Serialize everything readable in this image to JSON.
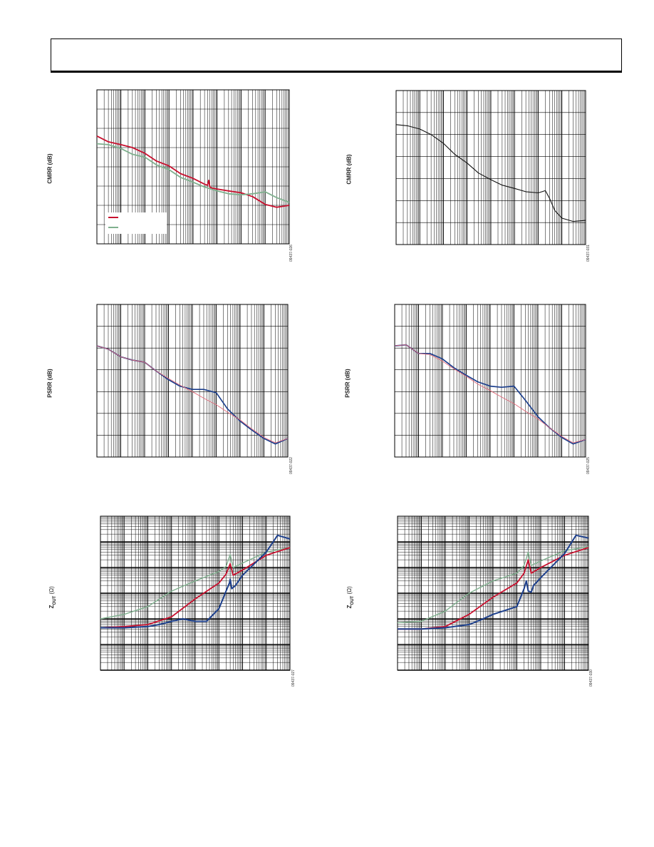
{
  "header": {
    "text": ""
  },
  "colors": {
    "red": "#c8102e",
    "green": "#7fb08e",
    "blue": "#1c3f8c",
    "pink": "#e46a7a",
    "black": "#111111"
  },
  "chart_data": [
    {
      "id": "cmrr-left",
      "type": "line",
      "ylabel": "CMRR (dB)",
      "fig_code": "09437-026",
      "xscale": "log",
      "xlim": [
        1,
        100000000
      ],
      "ylim": [
        0,
        8
      ],
      "grid": true,
      "legend": "bottom-left",
      "series": [
        {
          "color": "#c8102e",
          "width": 1.8,
          "x": [
            1,
            3,
            10,
            30,
            100,
            300,
            1000,
            3000,
            10000,
            30000,
            40000,
            45000,
            50000,
            60000,
            100000,
            300000,
            1000000,
            3000000,
            10000000,
            30000000,
            100000000
          ],
          "y": [
            5.6,
            5.3,
            5.15,
            5.0,
            4.7,
            4.3,
            4.05,
            3.65,
            3.4,
            3.1,
            3.05,
            3.3,
            2.95,
            2.9,
            2.85,
            2.75,
            2.65,
            2.45,
            2.05,
            1.9,
            2.0
          ]
        },
        {
          "color": "#7fb08e",
          "width": 1.8,
          "x": [
            1,
            3,
            10,
            30,
            100,
            300,
            1000,
            3000,
            10000,
            30000,
            100000,
            300000,
            1000000,
            3000000,
            10000000,
            30000000,
            100000000
          ],
          "y": [
            5.2,
            5.15,
            4.95,
            4.65,
            4.5,
            4.1,
            3.85,
            3.45,
            3.2,
            2.95,
            2.75,
            2.6,
            2.55,
            2.6,
            2.7,
            2.4,
            2.15
          ]
        }
      ]
    },
    {
      "id": "cmrr-right",
      "type": "line",
      "ylabel": "CMRR (dB)",
      "fig_code": "09437-031",
      "xscale": "log",
      "xlim": [
        1,
        100000000
      ],
      "ylim": [
        0,
        7
      ],
      "grid": true,
      "series": [
        {
          "color": "#111111",
          "width": 1.1,
          "x": [
            1,
            3,
            10,
            30,
            100,
            300,
            1000,
            3000,
            10000,
            30000,
            100000,
            300000,
            1000000,
            2000000,
            3000000,
            5000000,
            10000000,
            30000000,
            100000000
          ],
          "y": [
            5.45,
            5.4,
            5.25,
            5.0,
            4.6,
            4.1,
            3.7,
            3.25,
            2.95,
            2.7,
            2.55,
            2.4,
            2.35,
            2.45,
            2.1,
            1.55,
            1.2,
            1.05,
            1.1
          ]
        }
      ]
    },
    {
      "id": "psrr-left",
      "type": "line",
      "ylabel": "PSRR (dB)",
      "fig_code": "09437-022",
      "xscale": "log",
      "xlim": [
        1,
        100000000
      ],
      "ylim": [
        0,
        7
      ],
      "grid": true,
      "series": [
        {
          "color": "#1c3f8c",
          "width": 1.7,
          "x": [
            1,
            3,
            10,
            30,
            100,
            300,
            1000,
            3000,
            10000,
            30000,
            100000,
            300000,
            1000000,
            3000000,
            10000000,
            30000000,
            100000000
          ],
          "y": [
            5.1,
            4.95,
            4.6,
            4.45,
            4.35,
            3.95,
            3.55,
            3.25,
            3.1,
            3.1,
            2.95,
            2.2,
            1.65,
            1.25,
            0.85,
            0.6,
            0.85
          ]
        },
        {
          "color": "#e46a7a",
          "width": 0.9,
          "x": [
            1,
            3,
            10,
            30,
            100,
            300,
            1000,
            3000,
            10000,
            30000,
            100000,
            300000,
            1000000,
            3000000,
            10000000,
            30000000,
            100000000
          ],
          "y": [
            5.1,
            4.95,
            4.6,
            4.45,
            4.35,
            3.95,
            3.6,
            3.3,
            3.0,
            2.7,
            2.4,
            2.05,
            1.7,
            1.3,
            0.9,
            0.65,
            0.85
          ]
        }
      ]
    },
    {
      "id": "psrr-right",
      "type": "line",
      "ylabel": "PSRR (dB)",
      "fig_code": "09437-025",
      "xscale": "log",
      "xlim": [
        1,
        100000000
      ],
      "ylim": [
        0,
        7
      ],
      "grid": true,
      "series": [
        {
          "color": "#1c3f8c",
          "width": 1.7,
          "x": [
            1,
            3,
            10,
            30,
            100,
            300,
            1000,
            3000,
            10000,
            30000,
            100000,
            300000,
            1000000,
            3000000,
            10000000,
            30000000,
            100000000
          ],
          "y": [
            5.1,
            5.15,
            4.75,
            4.75,
            4.5,
            4.1,
            3.75,
            3.45,
            3.25,
            3.2,
            3.25,
            2.6,
            1.85,
            1.35,
            0.9,
            0.6,
            0.8
          ]
        },
        {
          "color": "#e46a7a",
          "width": 0.9,
          "x": [
            1,
            3,
            10,
            30,
            100,
            300,
            1000,
            3000,
            10000,
            30000,
            100000,
            300000,
            1000000,
            3000000,
            10000000,
            30000000,
            100000000
          ],
          "y": [
            5.1,
            5.15,
            4.75,
            4.7,
            4.4,
            4.05,
            3.7,
            3.35,
            3.05,
            2.75,
            2.45,
            2.1,
            1.75,
            1.35,
            0.95,
            0.65,
            0.8
          ]
        }
      ]
    },
    {
      "id": "zout-left",
      "type": "line",
      "ylabel": "Z",
      "ylabel_sub": "OUT",
      "ylabel_unit": " (Ω)",
      "fig_code": "09437-027",
      "xscale": "log",
      "xlim": [
        1,
        100000000
      ],
      "yscale": "log",
      "ylim": [
        0.001,
        1000
      ],
      "grid": true,
      "series": [
        {
          "color": "#7fb08e",
          "width": 1.4,
          "x": [
            1,
            10,
            100,
            1000,
            10000,
            100000,
            200000,
            300000,
            400000,
            1000000,
            10000000,
            100000000
          ],
          "y": [
            0.1,
            0.15,
            0.3,
            1.2,
            3,
            7,
            11,
            32,
            10,
            15,
            40,
            60
          ]
        },
        {
          "color": "#c8102e",
          "width": 1.8,
          "x": [
            1,
            10,
            100,
            1000,
            10000,
            100000,
            200000,
            300000,
            400000,
            1000000,
            10000000,
            100000000
          ],
          "y": [
            0.045,
            0.05,
            0.06,
            0.12,
            0.6,
            2.5,
            5.5,
            14,
            5,
            8,
            30,
            60
          ]
        },
        {
          "color": "#1c3f8c",
          "width": 2.0,
          "x": [
            1,
            10,
            100,
            300,
            1000,
            3000,
            10000,
            30000,
            100000,
            200000,
            280000,
            300000,
            350000,
            500000,
            1000000,
            10000000,
            30000000,
            100000000
          ],
          "y": [
            0.045,
            0.045,
            0.05,
            0.06,
            0.08,
            0.1,
            0.08,
            0.08,
            0.25,
            1.2,
            2.5,
            3.5,
            1.5,
            2,
            5,
            40,
            180,
            130
          ]
        }
      ]
    },
    {
      "id": "zout-right",
      "type": "line",
      "ylabel": "Z",
      "ylabel_sub": "OUT",
      "ylabel_unit": " (Ω)",
      "fig_code": "09437-030",
      "xscale": "log",
      "xlim": [
        1,
        100000000
      ],
      "yscale": "log",
      "ylim": [
        0.001,
        1000
      ],
      "grid": true,
      "series": [
        {
          "color": "#7fb08e",
          "width": 1.4,
          "x": [
            1,
            10,
            100,
            1000,
            10000,
            100000,
            200000,
            300000,
            400000,
            1000000,
            10000000,
            100000000
          ],
          "y": [
            0.07,
            0.08,
            0.2,
            1,
            3,
            6,
            12,
            40,
            12,
            18,
            45,
            65
          ]
        },
        {
          "color": "#c8102e",
          "width": 1.8,
          "x": [
            1,
            10,
            100,
            1000,
            10000,
            100000,
            200000,
            300000,
            400000,
            1000000,
            10000000,
            100000000
          ],
          "y": [
            0.04,
            0.04,
            0.05,
            0.15,
            0.7,
            2.5,
            6,
            20,
            6,
            10,
            30,
            60
          ]
        },
        {
          "color": "#1c3f8c",
          "width": 2.0,
          "x": [
            1,
            10,
            100,
            1000,
            3000,
            10000,
            100000,
            200000,
            250000,
            300000,
            400000,
            500000,
            1000000,
            10000000,
            30000000,
            100000000
          ],
          "y": [
            0.04,
            0.04,
            0.045,
            0.06,
            0.09,
            0.15,
            0.3,
            1.5,
            3,
            1.2,
            1.1,
            2,
            4,
            35,
            180,
            140
          ]
        }
      ]
    }
  ]
}
